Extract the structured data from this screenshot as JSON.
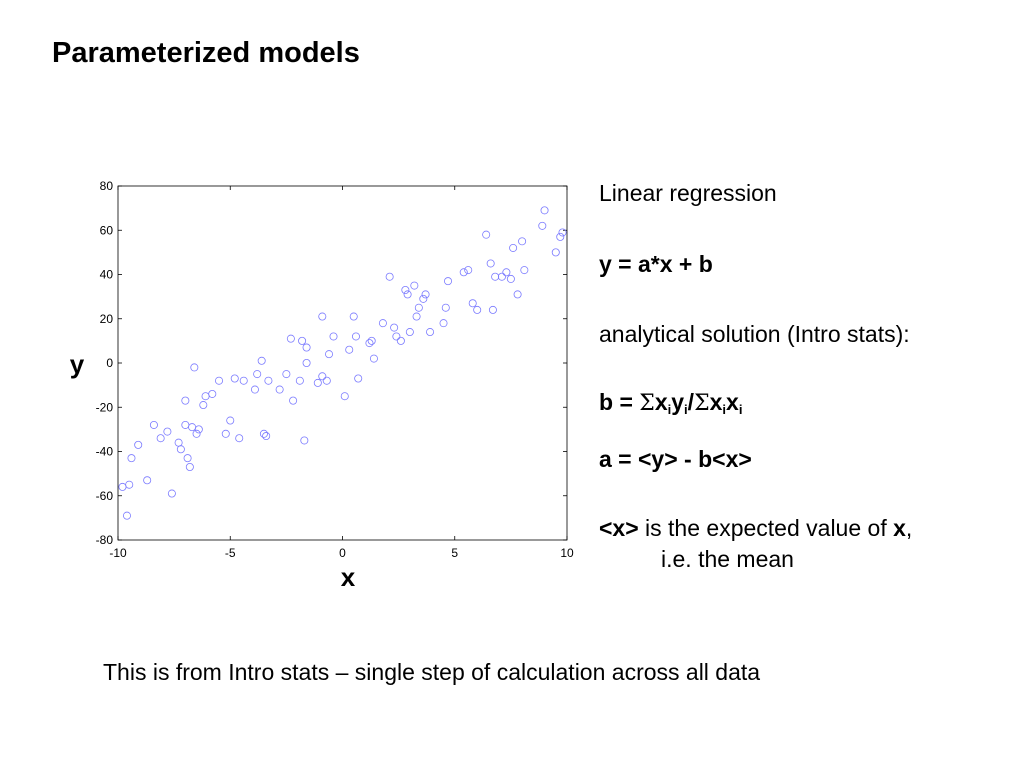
{
  "slide": {
    "title": "Parameterized models",
    "footer": "This is from Intro stats – single step of calculation across all data"
  },
  "text_panel": {
    "heading": "Linear regression",
    "equation": "y = a*x + b",
    "analytical": "analytical solution (Intro stats):",
    "b_formula": {
      "lhs": "b = ",
      "sigma": "Σ",
      "x": "x",
      "y": "y",
      "i": "i",
      "slash": "/"
    },
    "a_formula": "a = <y> - b<x>",
    "expected": {
      "x_term": "<x>",
      "middle": " is the expected value of ",
      "x_bold": "x",
      "comma": ",",
      "second_line": "i.e. the mean"
    }
  },
  "chart_data": {
    "type": "scatter",
    "xlabel": "x",
    "ylabel": "y",
    "xlim": [
      -10,
      10
    ],
    "ylim": [
      -80,
      80
    ],
    "xticks": [
      -10,
      -5,
      0,
      5,
      10
    ],
    "yticks": [
      -80,
      -60,
      -40,
      -20,
      0,
      20,
      40,
      60,
      80
    ],
    "grid": false,
    "marker": "circle-open",
    "marker_color": "#7b7bff",
    "series": [
      {
        "points": [
          [
            -9.8,
            -56
          ],
          [
            -9.6,
            -69
          ],
          [
            -9.5,
            -55
          ],
          [
            -9.4,
            -43
          ],
          [
            -9.1,
            -37
          ],
          [
            -8.7,
            -53
          ],
          [
            -8.4,
            -28
          ],
          [
            -8.1,
            -34
          ],
          [
            -7.8,
            -31
          ],
          [
            -7.6,
            -59
          ],
          [
            -7.3,
            -36
          ],
          [
            -7.2,
            -39
          ],
          [
            -7.0,
            -17
          ],
          [
            -7.0,
            -28
          ],
          [
            -6.9,
            -43
          ],
          [
            -6.8,
            -47
          ],
          [
            -6.7,
            -29
          ],
          [
            -6.6,
            -2
          ],
          [
            -6.5,
            -32
          ],
          [
            -6.4,
            -30
          ],
          [
            -6.2,
            -19
          ],
          [
            -6.1,
            -15
          ],
          [
            -5.8,
            -14
          ],
          [
            -5.5,
            -8
          ],
          [
            -5.2,
            -32
          ],
          [
            -5.0,
            -26
          ],
          [
            -4.8,
            -7
          ],
          [
            -4.6,
            -34
          ],
          [
            -4.4,
            -8
          ],
          [
            -3.9,
            -12
          ],
          [
            -3.8,
            -5
          ],
          [
            -3.6,
            1
          ],
          [
            -3.5,
            -32
          ],
          [
            -3.4,
            -33
          ],
          [
            -3.3,
            -8
          ],
          [
            -2.8,
            -12
          ],
          [
            -2.5,
            -5
          ],
          [
            -2.3,
            11
          ],
          [
            -2.2,
            -17
          ],
          [
            -1.9,
            -8
          ],
          [
            -1.8,
            10
          ],
          [
            -1.7,
            -35
          ],
          [
            -1.6,
            0
          ],
          [
            -1.6,
            7
          ],
          [
            -1.1,
            -9
          ],
          [
            -0.9,
            -6
          ],
          [
            -0.9,
            21
          ],
          [
            -0.7,
            -8
          ],
          [
            -0.6,
            4
          ],
          [
            -0.4,
            12
          ],
          [
            0.1,
            -15
          ],
          [
            0.3,
            6
          ],
          [
            0.5,
            21
          ],
          [
            0.6,
            12
          ],
          [
            0.7,
            -7
          ],
          [
            1.2,
            9
          ],
          [
            1.3,
            10
          ],
          [
            1.4,
            2
          ],
          [
            1.8,
            18
          ],
          [
            2.1,
            39
          ],
          [
            2.3,
            16
          ],
          [
            2.4,
            12
          ],
          [
            2.6,
            10
          ],
          [
            2.8,
            33
          ],
          [
            2.9,
            31
          ],
          [
            3.0,
            14
          ],
          [
            3.2,
            35
          ],
          [
            3.3,
            21
          ],
          [
            3.4,
            25
          ],
          [
            3.6,
            29
          ],
          [
            3.7,
            31
          ],
          [
            3.9,
            14
          ],
          [
            4.5,
            18
          ],
          [
            4.6,
            25
          ],
          [
            4.7,
            37
          ],
          [
            5.4,
            41
          ],
          [
            5.6,
            42
          ],
          [
            5.8,
            27
          ],
          [
            6.0,
            24
          ],
          [
            6.4,
            58
          ],
          [
            6.6,
            45
          ],
          [
            6.7,
            24
          ],
          [
            6.8,
            39
          ],
          [
            7.1,
            39
          ],
          [
            7.3,
            41
          ],
          [
            7.5,
            38
          ],
          [
            7.6,
            52
          ],
          [
            7.8,
            31
          ],
          [
            8.0,
            55
          ],
          [
            8.1,
            42
          ],
          [
            8.9,
            62
          ],
          [
            9.0,
            69
          ],
          [
            9.7,
            57
          ],
          [
            9.8,
            59
          ],
          [
            9.5,
            50
          ]
        ]
      }
    ]
  }
}
